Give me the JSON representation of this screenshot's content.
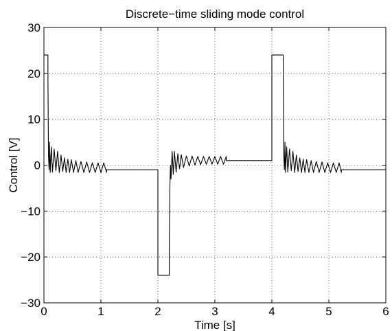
{
  "chart_data": {
    "type": "line",
    "title": "Discrete−time sliding mode control",
    "xlabel": "Time [s]",
    "ylabel": "Control [V]",
    "xlim": [
      0,
      6
    ],
    "ylim": [
      -30,
      30
    ],
    "xticks": [
      0,
      1,
      2,
      3,
      4,
      5,
      6
    ],
    "yticks": [
      -30,
      -20,
      -10,
      0,
      10,
      20,
      30
    ],
    "xtick_labels": [
      "0",
      "1",
      "2",
      "3",
      "4",
      "5",
      "6"
    ],
    "ytick_labels": [
      "−30",
      "−20",
      "−10",
      "0",
      "10",
      "20",
      "30"
    ],
    "grid": true,
    "series": [
      {
        "name": "",
        "color": "#000000",
        "points": [
          [
            0,
            24
          ],
          [
            0.07,
            24
          ],
          [
            0.07,
            20
          ],
          [
            0.075,
            10
          ],
          [
            0.08,
            2
          ],
          [
            0.09,
            -1
          ],
          [
            0.1,
            5
          ],
          [
            0.11,
            -1.6
          ],
          [
            0.13,
            4
          ],
          [
            0.15,
            -1.5
          ],
          [
            0.18,
            3.5
          ],
          [
            0.21,
            -1.2
          ],
          [
            0.24,
            3
          ],
          [
            0.27,
            -1.6
          ],
          [
            0.3,
            2.2
          ],
          [
            0.33,
            -1.4
          ],
          [
            0.36,
            1.6
          ],
          [
            0.39,
            -1.6
          ],
          [
            0.42,
            1.3
          ],
          [
            0.45,
            -1.6
          ],
          [
            0.48,
            1.2
          ],
          [
            0.52,
            -1.6
          ],
          [
            0.56,
            1
          ],
          [
            0.6,
            -1.6
          ],
          [
            0.65,
            0.8
          ],
          [
            0.7,
            -1.6
          ],
          [
            0.75,
            0.7
          ],
          [
            0.8,
            -1.6
          ],
          [
            0.85,
            0.5
          ],
          [
            0.9,
            -1.6
          ],
          [
            0.95,
            0.5
          ],
          [
            1.0,
            -1.6
          ],
          [
            1.05,
            0.5
          ],
          [
            1.1,
            -1.6
          ],
          [
            1.1,
            -1
          ],
          [
            2.0,
            -1
          ],
          [
            2.0,
            -24
          ],
          [
            2.2,
            -24
          ],
          [
            2.2,
            -18
          ],
          [
            2.21,
            -5
          ],
          [
            2.22,
            0
          ],
          [
            2.23,
            -3
          ],
          [
            2.25,
            3
          ],
          [
            2.27,
            -2
          ],
          [
            2.29,
            3
          ],
          [
            2.32,
            -1.5
          ],
          [
            2.35,
            2.5
          ],
          [
            2.38,
            -0.8
          ],
          [
            2.41,
            2.3
          ],
          [
            2.45,
            -0.5
          ],
          [
            2.5,
            2
          ],
          [
            2.55,
            -0.2
          ],
          [
            2.6,
            2
          ],
          [
            2.65,
            0
          ],
          [
            2.7,
            1.9
          ],
          [
            2.75,
            0.1
          ],
          [
            2.8,
            1.9
          ],
          [
            2.85,
            0.2
          ],
          [
            2.9,
            1.9
          ],
          [
            2.95,
            0.2
          ],
          [
            3.0,
            1.9
          ],
          [
            3.05,
            0.2
          ],
          [
            3.1,
            1.9
          ],
          [
            3.15,
            0.2
          ],
          [
            3.2,
            1.9
          ],
          [
            3.2,
            1
          ],
          [
            4.0,
            1
          ],
          [
            4.0,
            24
          ],
          [
            4.2,
            24
          ],
          [
            4.2,
            20
          ],
          [
            4.205,
            10
          ],
          [
            4.21,
            2
          ],
          [
            4.22,
            -1
          ],
          [
            4.23,
            5
          ],
          [
            4.24,
            -1.6
          ],
          [
            4.26,
            4
          ],
          [
            4.28,
            -1.5
          ],
          [
            4.31,
            3.5
          ],
          [
            4.34,
            -1.2
          ],
          [
            4.37,
            3
          ],
          [
            4.4,
            -1.6
          ],
          [
            4.43,
            2.2
          ],
          [
            4.46,
            -1.4
          ],
          [
            4.49,
            1.6
          ],
          [
            4.52,
            -1.6
          ],
          [
            4.55,
            1.3
          ],
          [
            4.58,
            -1.6
          ],
          [
            4.61,
            1.2
          ],
          [
            4.65,
            -1.6
          ],
          [
            4.69,
            1
          ],
          [
            4.73,
            -1.6
          ],
          [
            4.78,
            0.8
          ],
          [
            4.83,
            -1.6
          ],
          [
            4.88,
            0.7
          ],
          [
            4.93,
            -1.6
          ],
          [
            4.98,
            0.5
          ],
          [
            5.03,
            -1.6
          ],
          [
            5.08,
            0.5
          ],
          [
            5.13,
            -1.6
          ],
          [
            5.18,
            0.5
          ],
          [
            5.22,
            -1.6
          ],
          [
            5.22,
            -1
          ],
          [
            6.0,
            -1
          ]
        ]
      }
    ]
  }
}
